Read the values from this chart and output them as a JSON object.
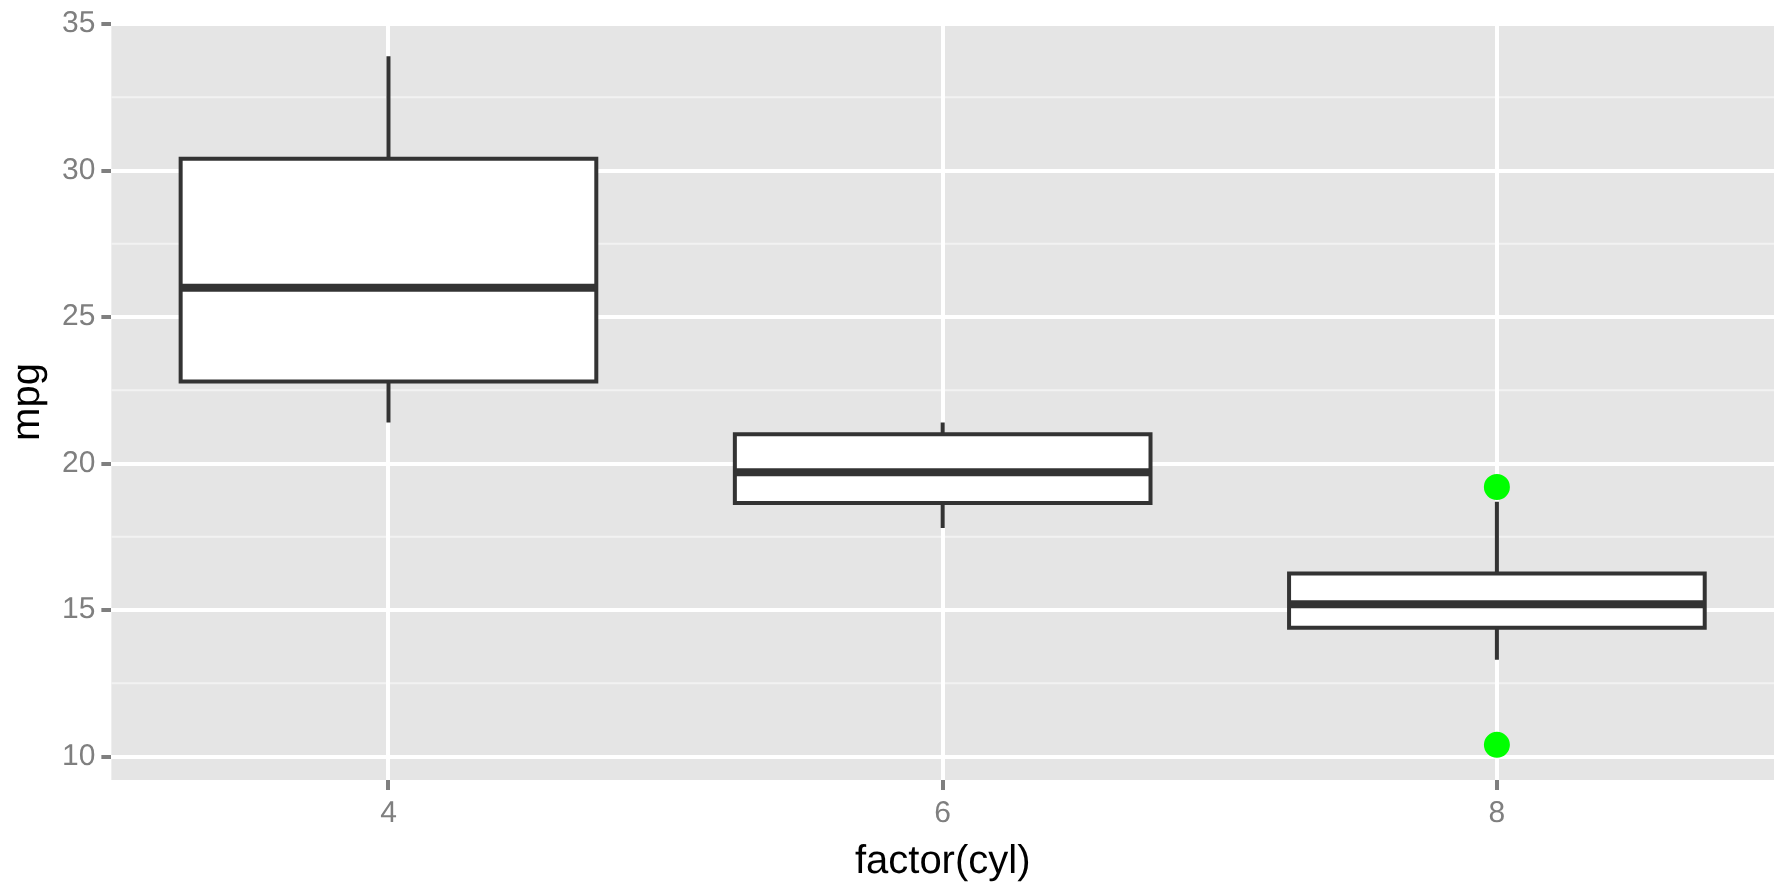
{
  "chart_data": {
    "type": "box",
    "xlabel": "factor(cyl)",
    "ylabel": "mpg",
    "categories": [
      "4",
      "6",
      "8"
    ],
    "series": [
      {
        "color": "#ffffff",
        "boxes": [
          {
            "low": 21.4,
            "q1": 22.8,
            "median": 26,
            "q3": 30.4,
            "high": 33.9
          },
          {
            "low": 17.8,
            "q1": 18.65,
            "median": 19.7,
            "q3": 21,
            "high": 21.4
          },
          {
            "low": 13.3,
            "q1": 14.4,
            "median": 15.2,
            "q3": 16.25,
            "high": 18.7
          }
        ]
      },
      {
        "type": "scatter",
        "color": "#00ff00",
        "x": [
          "8",
          "8"
        ],
        "values": [
          10.4,
          19.2
        ]
      }
    ],
    "ylim": [
      9.2,
      35
    ],
    "yticks": [
      10,
      15,
      20,
      25,
      30,
      35
    ],
    "grid": true,
    "legend": false
  }
}
